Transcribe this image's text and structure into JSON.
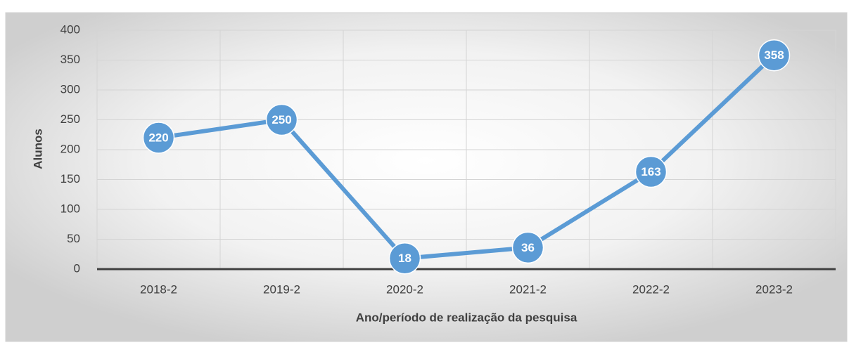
{
  "chart_data": {
    "type": "line",
    "x_label": "Ano/período de realização da pesquisa",
    "y_label": "Alunos",
    "categories": [
      "2018-2",
      "2019-2",
      "2020-2",
      "2021-2",
      "2022-2",
      "2023-2"
    ],
    "series": [
      {
        "name": "Alunos",
        "color": "#5b9bd5",
        "values": [
          220,
          250,
          18,
          36,
          163,
          358
        ]
      }
    ],
    "ylim": [
      0,
      400
    ],
    "yticks": [
      0,
      50,
      100,
      150,
      200,
      250,
      300,
      350,
      400
    ],
    "grid": true
  }
}
